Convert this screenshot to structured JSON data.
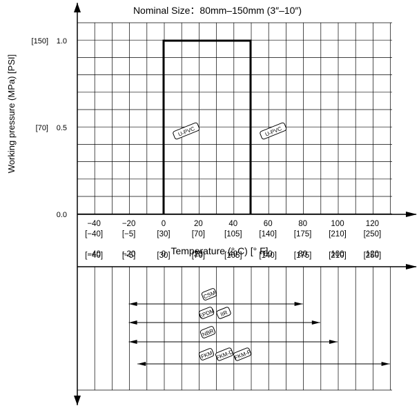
{
  "chart_data": {
    "type": "line",
    "title": "Nominal Size：80mm–150mm (3″–10″)",
    "xlabel": "Temperature (° C) [° F]",
    "ylabel": "Working pressure (MPa) [PSI]",
    "x_ticks": [
      {
        "c": "−40",
        "f": "[−40]"
      },
      {
        "c": "−20",
        "f": "[−5]"
      },
      {
        "c": "0",
        "f": "[30]"
      },
      {
        "c": "20",
        "f": "[70]"
      },
      {
        "c": "40",
        "f": "[105]"
      },
      {
        "c": "60",
        "f": "[140]"
      },
      {
        "c": "80",
        "f": "[175]"
      },
      {
        "c": "100",
        "f": "[210]"
      },
      {
        "c": "120",
        "f": "[250]"
      }
    ],
    "y_ticks": [
      {
        "v": 0.0,
        "label": "0.0",
        "psi": ""
      },
      {
        "v": 0.5,
        "label": "0.5",
        "psi": "[70]"
      },
      {
        "v": 1.0,
        "label": "1.0",
        "psi": "[150]"
      }
    ],
    "xlim": [
      -50,
      140
    ],
    "ylim": [
      0,
      1.0
    ],
    "grid": true,
    "series": [
      {
        "x": [
          0,
          0,
          50,
          50
        ],
        "y": [
          0,
          1.0,
          1.0,
          0
        ]
      }
    ],
    "annotations": [
      {
        "label": "U-PVC",
        "x": 13,
        "y": 0.5
      },
      {
        "label": "U-PVC",
        "x": 63,
        "y": 0.5
      }
    ],
    "material_ranges": [
      {
        "labels": [
          "CSM"
        ],
        "x": [
          -20,
          80
        ]
      },
      {
        "labels": [
          "EPDM",
          "IIR"
        ],
        "x": [
          -20,
          90
        ]
      },
      {
        "labels": [
          "NBR"
        ],
        "x": [
          -20,
          100
        ]
      },
      {
        "labels": [
          "FKM",
          "FKM-D",
          "FKM-F"
        ],
        "x": [
          -15,
          130
        ]
      }
    ]
  }
}
